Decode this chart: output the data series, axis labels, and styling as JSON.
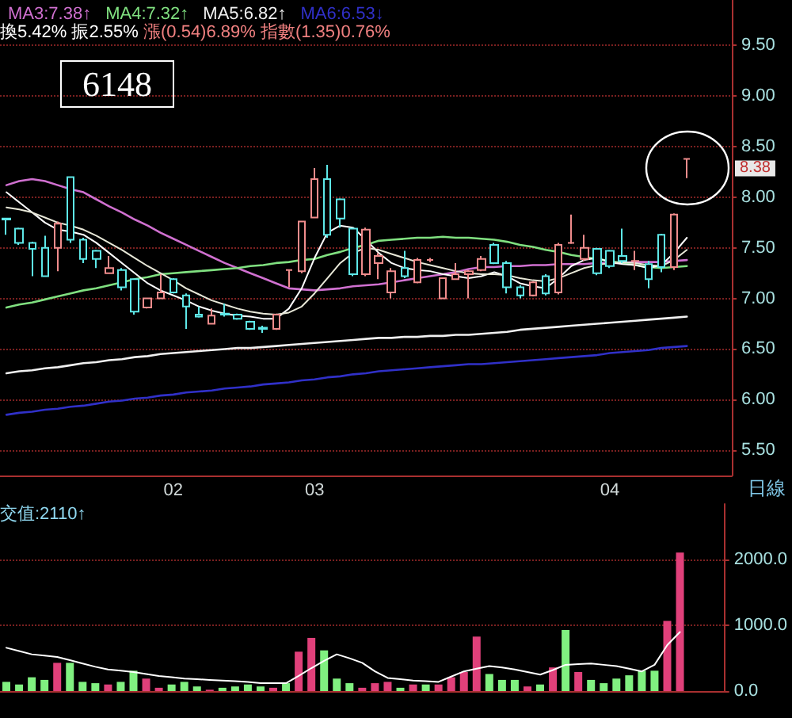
{
  "chart_data": [
    {
      "type": "candlestick",
      "title": "6148",
      "xlabel": "日線",
      "categories": [
        null,
        null,
        null,
        null,
        null,
        null,
        null,
        null,
        null,
        null,
        null,
        null,
        null,
        "02",
        null,
        null,
        null,
        null,
        null,
        null,
        null,
        null,
        null,
        null,
        "03",
        null,
        null,
        null,
        null,
        null,
        null,
        null,
        null,
        null,
        null,
        null,
        null,
        null,
        null,
        null,
        null,
        null,
        null,
        null,
        null,
        null,
        null,
        "04",
        null,
        null,
        null,
        null,
        null,
        null,
        null,
        null,
        null
      ],
      "ohlc": [
        [
          7.79,
          7.79,
          7.63,
          7.78
        ],
        [
          7.69,
          7.7,
          7.53,
          7.55
        ],
        [
          7.55,
          7.56,
          7.22,
          7.49
        ],
        [
          7.5,
          7.62,
          7.22,
          7.22
        ],
        [
          7.5,
          7.76,
          7.27,
          7.74
        ],
        [
          8.2,
          8.2,
          7.55,
          7.58
        ],
        [
          7.58,
          7.6,
          7.35,
          7.39
        ],
        [
          7.47,
          7.48,
          7.3,
          7.39
        ],
        [
          7.25,
          7.42,
          7.25,
          7.3
        ],
        [
          7.28,
          7.3,
          7.08,
          7.11
        ],
        [
          7.19,
          7.19,
          6.84,
          6.87
        ],
        [
          6.91,
          7.0,
          6.9,
          7.0
        ],
        [
          7.0,
          7.24,
          7.0,
          7.06
        ],
        [
          7.19,
          7.2,
          7.05,
          7.06
        ],
        [
          7.03,
          7.05,
          6.7,
          6.92
        ],
        [
          6.84,
          6.92,
          6.81,
          6.82
        ],
        [
          6.75,
          6.9,
          6.75,
          6.83
        ],
        [
          6.85,
          6.95,
          6.82,
          6.84
        ],
        [
          6.84,
          6.85,
          6.79,
          6.8
        ],
        [
          6.77,
          6.78,
          6.69,
          6.7
        ],
        [
          6.71,
          6.73,
          6.66,
          6.7
        ],
        [
          6.7,
          6.85,
          6.69,
          6.84
        ],
        [
          7.28,
          7.28,
          7.11,
          7.28
        ],
        [
          7.27,
          7.76,
          7.25,
          7.76
        ],
        [
          7.8,
          8.29,
          7.8,
          8.18
        ],
        [
          8.18,
          8.32,
          7.6,
          7.63
        ],
        [
          7.98,
          7.99,
          7.7,
          7.79
        ],
        [
          7.69,
          7.7,
          7.22,
          7.24
        ],
        [
          7.24,
          7.7,
          7.22,
          7.68
        ],
        [
          7.35,
          7.45,
          7.19,
          7.42
        ],
        [
          7.06,
          7.3,
          7.0,
          7.27
        ],
        [
          7.3,
          7.47,
          7.2,
          7.22
        ],
        [
          7.16,
          7.4,
          7.15,
          7.38
        ],
        [
          7.38,
          7.4,
          7.36,
          7.38
        ],
        [
          7.0,
          7.2,
          7.0,
          7.2
        ],
        [
          7.19,
          7.35,
          7.19,
          7.24
        ],
        [
          7.24,
          7.28,
          7.0,
          7.27
        ],
        [
          7.28,
          7.42,
          7.27,
          7.39
        ],
        [
          7.53,
          7.55,
          7.34,
          7.35
        ],
        [
          7.35,
          7.37,
          7.05,
          7.11
        ],
        [
          7.11,
          7.13,
          7.0,
          7.03
        ],
        [
          7.03,
          7.17,
          7.02,
          7.16
        ],
        [
          7.22,
          7.24,
          7.03,
          7.05
        ],
        [
          7.06,
          7.55,
          7.04,
          7.53
        ],
        [
          7.55,
          7.83,
          7.54,
          7.55
        ],
        [
          7.39,
          7.63,
          7.37,
          7.5
        ],
        [
          7.49,
          7.5,
          7.23,
          7.25
        ],
        [
          7.47,
          7.48,
          7.3,
          7.32
        ],
        [
          7.42,
          7.69,
          7.35,
          7.37
        ],
        [
          7.37,
          7.47,
          7.28,
          7.37
        ],
        [
          7.34,
          7.37,
          7.1,
          7.19
        ],
        [
          7.63,
          7.64,
          7.26,
          7.31
        ],
        [
          7.31,
          7.84,
          7.28,
          7.83
        ],
        [
          8.38,
          8.38,
          8.19,
          8.38
        ],
        null,
        null,
        null
      ],
      "colors": [
        "#5ee8e8",
        "#5ee8e8",
        "#5ee8e8",
        "#5ee8e8",
        "#f08c8c",
        "#5ee8e8",
        "#5ee8e8",
        "#5ee8e8",
        "#f08c8c",
        "#5ee8e8",
        "#5ee8e8",
        "#f08c8c",
        "#f08c8c",
        "#5ee8e8",
        "#5ee8e8",
        "#5ee8e8",
        "#f08c8c",
        "#5ee8e8",
        "#5ee8e8",
        "#5ee8e8",
        "#5ee8e8",
        "#f08c8c",
        "#f08c8c",
        "#f08c8c",
        "#f08c8c",
        "#5ee8e8",
        "#5ee8e8",
        "#5ee8e8",
        "#f08c8c",
        "#f08c8c",
        "#f08c8c",
        "#5ee8e8",
        "#f08c8c",
        "#f08c8c",
        "#f08c8c",
        "#f08c8c",
        "#f08c8c",
        "#f08c8c",
        "#5ee8e8",
        "#5ee8e8",
        "#5ee8e8",
        "#f08c8c",
        "#5ee8e8",
        "#f08c8c",
        "#f08c8c",
        "#f08c8c",
        "#5ee8e8",
        "#5ee8e8",
        "#5ee8e8",
        "#f08c8c",
        "#5ee8e8",
        "#5ee8e8",
        "#f08c8c",
        "#f08c8c",
        null,
        null,
        null
      ],
      "series": [
        {
          "type": "line",
          "name": "MA3:7.38↑",
          "color": "#d070d0",
          "values": [
            8.12,
            8.16,
            8.18,
            8.16,
            8.12,
            8.08,
            8.05,
            7.98,
            7.91,
            7.85,
            7.78,
            7.72,
            7.65,
            7.59,
            7.53,
            7.47,
            7.41,
            7.35,
            7.3,
            7.25,
            7.2,
            7.15,
            7.1,
            7.09,
            7.08,
            7.09,
            7.1,
            7.12,
            7.13,
            7.14,
            7.16,
            7.18,
            7.2,
            7.22,
            7.24,
            7.26,
            7.29,
            7.31,
            7.31,
            7.32,
            7.32,
            7.33,
            7.33,
            7.34,
            7.34,
            7.34,
            7.35,
            7.35,
            7.35,
            7.36,
            7.36,
            7.36,
            7.37,
            7.38,
            null,
            null,
            null
          ]
        },
        {
          "type": "line",
          "name": "MA4:7.32↑",
          "color": "#80e080",
          "values": [
            6.91,
            6.94,
            6.96,
            6.99,
            7.02,
            7.05,
            7.08,
            7.1,
            7.13,
            7.16,
            7.19,
            7.21,
            7.24,
            7.25,
            7.26,
            7.27,
            7.28,
            7.29,
            7.3,
            7.32,
            7.33,
            7.35,
            7.36,
            7.38,
            7.39,
            7.43,
            7.46,
            7.5,
            7.53,
            7.57,
            7.58,
            7.59,
            7.6,
            7.6,
            7.61,
            7.6,
            7.6,
            7.59,
            7.58,
            7.56,
            7.53,
            7.51,
            7.48,
            7.46,
            7.43,
            7.41,
            7.39,
            7.37,
            7.35,
            7.33,
            7.31,
            7.3,
            7.31,
            7.32,
            null,
            null,
            null
          ]
        },
        {
          "type": "line",
          "name": "MA5:6.82↑",
          "color": "#f0f0f0",
          "values": [
            6.26,
            6.28,
            6.29,
            6.31,
            6.32,
            6.34,
            6.36,
            6.37,
            6.39,
            6.4,
            6.42,
            6.43,
            6.45,
            6.46,
            6.47,
            6.48,
            6.49,
            6.5,
            6.51,
            6.51,
            6.52,
            6.53,
            6.54,
            6.55,
            6.56,
            6.57,
            6.58,
            6.59,
            6.6,
            6.61,
            6.61,
            6.62,
            6.62,
            6.63,
            6.63,
            6.64,
            6.64,
            6.65,
            6.66,
            6.67,
            6.69,
            6.7,
            6.71,
            6.72,
            6.73,
            6.74,
            6.75,
            6.76,
            6.77,
            6.78,
            6.79,
            6.8,
            6.81,
            6.82,
            null,
            null,
            null
          ]
        },
        {
          "type": "line",
          "name": "MA6:6.53↓",
          "color": "#3030c8",
          "values": [
            5.85,
            5.87,
            5.88,
            5.9,
            5.91,
            5.93,
            5.94,
            5.96,
            5.98,
            5.99,
            6.01,
            6.02,
            6.04,
            6.05,
            6.07,
            6.08,
            6.09,
            6.11,
            6.12,
            6.13,
            6.15,
            6.16,
            6.17,
            6.19,
            6.2,
            6.22,
            6.23,
            6.25,
            6.26,
            6.28,
            6.29,
            6.3,
            6.31,
            6.32,
            6.33,
            6.34,
            6.35,
            6.35,
            6.36,
            6.37,
            6.38,
            6.39,
            6.4,
            6.41,
            6.42,
            6.43,
            6.44,
            6.46,
            6.47,
            6.48,
            6.49,
            6.51,
            6.52,
            6.53,
            null,
            null,
            null
          ]
        },
        {
          "type": "line",
          "color": "#ffffff",
          "values": [
            8.05,
            7.95,
            7.85,
            7.75,
            7.68,
            7.66,
            7.63,
            7.55,
            7.45,
            7.35,
            7.25,
            7.15,
            7.08,
            7.03,
            6.98,
            6.92,
            6.88,
            6.85,
            6.83,
            6.82,
            6.8,
            6.8,
            6.9,
            7.1,
            7.4,
            7.65,
            7.72,
            7.7,
            7.58,
            7.45,
            7.35,
            7.3,
            7.28,
            7.27,
            7.24,
            7.22,
            7.2,
            7.22,
            7.26,
            7.22,
            7.15,
            7.12,
            7.1,
            7.2,
            7.32,
            7.38,
            7.4,
            7.36,
            7.34,
            7.33,
            7.3,
            7.33,
            7.45,
            7.6,
            null,
            null,
            null
          ]
        },
        {
          "type": "line",
          "color": "#e8e8d8",
          "values": [
            7.9,
            7.88,
            7.85,
            7.8,
            7.75,
            7.72,
            7.68,
            7.62,
            7.55,
            7.48,
            7.4,
            7.32,
            7.25,
            7.18,
            7.1,
            7.04,
            6.98,
            6.94,
            6.9,
            6.87,
            6.85,
            6.84,
            6.86,
            6.92,
            7.05,
            7.2,
            7.35,
            7.45,
            7.5,
            7.48,
            7.44,
            7.4,
            7.36,
            7.33,
            7.3,
            7.27,
            7.25,
            7.24,
            7.24,
            7.23,
            7.2,
            7.18,
            7.17,
            7.2,
            7.25,
            7.3,
            7.33,
            7.35,
            7.36,
            7.35,
            7.33,
            7.32,
            7.38,
            7.48,
            null,
            null,
            null
          ]
        }
      ],
      "ylim": [
        5.25,
        9.95
      ],
      "yticks": [
        {
          "value": 5.5,
          "label": "5.50"
        },
        {
          "value": 6,
          "label": "6.00"
        },
        {
          "value": 6.5,
          "label": "6.50"
        },
        {
          "value": 7,
          "label": "7.00"
        },
        {
          "value": 7.5,
          "label": "7.50"
        },
        {
          "value": 8,
          "label": "8.00"
        },
        {
          "value": 8.5,
          "label": "8.50"
        },
        {
          "value": 9,
          "label": "9.00"
        },
        {
          "value": 9.5,
          "label": "9.50"
        }
      ],
      "grid": "y",
      "legend": "top left",
      "annotations": [
        "換5.42%",
        "振2.55%",
        "漲(0.54)6.89%",
        "指數(1.35)0.76%",
        "8.38"
      ]
    },
    {
      "type": "bar",
      "title": "交值:2110↑",
      "categories": [
        null,
        null,
        null,
        null,
        null,
        null,
        null,
        null,
        null,
        null,
        null,
        null,
        null,
        null,
        null,
        null,
        null,
        null,
        null,
        null,
        null,
        null,
        null,
        null,
        null,
        null,
        null,
        null,
        null,
        null,
        null,
        null,
        null,
        null,
        null,
        null,
        null,
        null,
        null,
        null,
        null,
        null,
        null,
        null,
        null,
        null,
        null,
        null,
        null,
        null,
        null,
        null,
        null,
        null,
        null,
        null,
        null
      ],
      "series": [
        {
          "type": "bar",
          "values": [
            140,
            100,
            210,
            170,
            430,
            430,
            140,
            120,
            100,
            140,
            310,
            190,
            50,
            100,
            140,
            70,
            20,
            50,
            70,
            100,
            70,
            50,
            120,
            600,
            810,
            620,
            190,
            120,
            50,
            120,
            140,
            50,
            100,
            100,
            100,
            210,
            290,
            830,
            260,
            170,
            170,
            70,
            100,
            360,
            930,
            290,
            170,
            120,
            190,
            240,
            310,
            310,
            1070,
            2110,
            null,
            null,
            null
          ],
          "colors": [
            "#80f080",
            "#80f080",
            "#80f080",
            "#80f080",
            "#e0407a",
            "#80f080",
            "#80f080",
            "#80f080",
            "#e0407a",
            "#80f080",
            "#80f080",
            "#e0407a",
            "#e0407a",
            "#80f080",
            "#80f080",
            "#80f080",
            "#e0407a",
            "#80f080",
            "#80f080",
            "#80f080",
            "#80f080",
            "#e0407a",
            "#80f080",
            "#e0407a",
            "#e0407a",
            "#80f080",
            "#80f080",
            "#80f080",
            "#e0407a",
            "#e0407a",
            "#e0407a",
            "#80f080",
            "#e0407a",
            "#80f080",
            "#e0407a",
            "#e0407a",
            "#e0407a",
            "#e0407a",
            "#80f080",
            "#80f080",
            "#80f080",
            "#e0407a",
            "#80f080",
            "#e0407a",
            "#80f080",
            "#e0407a",
            "#80f080",
            "#80f080",
            "#80f080",
            "#80f080",
            "#80f080",
            "#80f080",
            "#e0407a",
            "#e0407a",
            null,
            null,
            null
          ]
        },
        {
          "type": "line",
          "color": "#ffffff",
          "values": [
            660,
            610,
            560,
            540,
            520,
            470,
            420,
            370,
            330,
            310,
            290,
            260,
            230,
            210,
            190,
            180,
            170,
            160,
            150,
            140,
            120,
            120,
            120,
            230,
            350,
            460,
            560,
            500,
            430,
            300,
            200,
            180,
            160,
            150,
            140,
            220,
            300,
            340,
            380,
            360,
            330,
            290,
            250,
            320,
            400,
            410,
            420,
            400,
            380,
            340,
            300,
            400,
            700,
            900,
            null,
            null,
            null
          ]
        }
      ],
      "ylim": [
        0,
        2850
      ],
      "yticks": [
        {
          "value": 0,
          "label": "0.0"
        },
        {
          "value": 1000,
          "label": "1000.0"
        },
        {
          "value": 2000,
          "label": "2000.0"
        }
      ],
      "grid": "y",
      "tick_labels": "y"
    }
  ]
}
